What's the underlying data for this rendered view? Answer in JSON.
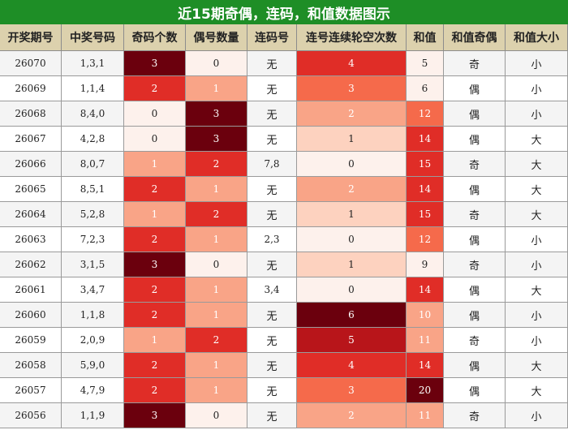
{
  "title": "近15期奇偶，连码，和值数据图示",
  "colors": {
    "title_bg": "#1e8e26",
    "header_bg": "#dcd1ad",
    "row_bg_odd": "#f4f4f4",
    "row_bg_even": "#ffffff",
    "heat_scale": [
      "#fdf1ec",
      "#fdd2bf",
      "#f9a487",
      "#f56a4b",
      "#e02d27",
      "#b8151a",
      "#6b000d"
    ]
  },
  "chart_data": {
    "type": "table",
    "columns": [
      "开奖期号",
      "中奖号码",
      "奇码个数",
      "偶号数量",
      "连码号",
      "连号连续轮空次数",
      "和值",
      "和值奇偶",
      "和值大小"
    ],
    "rows": [
      {
        "period": "26070",
        "numbers": "1,3,1",
        "odd": 3,
        "even": 0,
        "consecutive": "无",
        "gap": 4,
        "sum": 5,
        "sum_parity": "奇",
        "sum_size": "小"
      },
      {
        "period": "26069",
        "numbers": "1,1,4",
        "odd": 2,
        "even": 1,
        "consecutive": "无",
        "gap": 3,
        "sum": 6,
        "sum_parity": "偶",
        "sum_size": "小"
      },
      {
        "period": "26068",
        "numbers": "8,4,0",
        "odd": 0,
        "even": 3,
        "consecutive": "无",
        "gap": 2,
        "sum": 12,
        "sum_parity": "偶",
        "sum_size": "小"
      },
      {
        "period": "26067",
        "numbers": "4,2,8",
        "odd": 0,
        "even": 3,
        "consecutive": "无",
        "gap": 1,
        "sum": 14,
        "sum_parity": "偶",
        "sum_size": "大"
      },
      {
        "period": "26066",
        "numbers": "8,0,7",
        "odd": 1,
        "even": 2,
        "consecutive": "7,8",
        "gap": 0,
        "sum": 15,
        "sum_parity": "奇",
        "sum_size": "大"
      },
      {
        "period": "26065",
        "numbers": "8,5,1",
        "odd": 2,
        "even": 1,
        "consecutive": "无",
        "gap": 2,
        "sum": 14,
        "sum_parity": "偶",
        "sum_size": "大"
      },
      {
        "period": "26064",
        "numbers": "5,2,8",
        "odd": 1,
        "even": 2,
        "consecutive": "无",
        "gap": 1,
        "sum": 15,
        "sum_parity": "奇",
        "sum_size": "大"
      },
      {
        "period": "26063",
        "numbers": "7,2,3",
        "odd": 2,
        "even": 1,
        "consecutive": "2,3",
        "gap": 0,
        "sum": 12,
        "sum_parity": "偶",
        "sum_size": "小"
      },
      {
        "period": "26062",
        "numbers": "3,1,5",
        "odd": 3,
        "even": 0,
        "consecutive": "无",
        "gap": 1,
        "sum": 9,
        "sum_parity": "奇",
        "sum_size": "小"
      },
      {
        "period": "26061",
        "numbers": "3,4,7",
        "odd": 2,
        "even": 1,
        "consecutive": "3,4",
        "gap": 0,
        "sum": 14,
        "sum_parity": "偶",
        "sum_size": "大"
      },
      {
        "period": "26060",
        "numbers": "1,1,8",
        "odd": 2,
        "even": 1,
        "consecutive": "无",
        "gap": 6,
        "sum": 10,
        "sum_parity": "偶",
        "sum_size": "小"
      },
      {
        "period": "26059",
        "numbers": "2,0,9",
        "odd": 1,
        "even": 2,
        "consecutive": "无",
        "gap": 5,
        "sum": 11,
        "sum_parity": "奇",
        "sum_size": "小"
      },
      {
        "period": "26058",
        "numbers": "5,9,0",
        "odd": 2,
        "even": 1,
        "consecutive": "无",
        "gap": 4,
        "sum": 14,
        "sum_parity": "偶",
        "sum_size": "大"
      },
      {
        "period": "26057",
        "numbers": "4,7,9",
        "odd": 2,
        "even": 1,
        "consecutive": "无",
        "gap": 3,
        "sum": 20,
        "sum_parity": "偶",
        "sum_size": "大"
      },
      {
        "period": "26056",
        "numbers": "1,1,9",
        "odd": 3,
        "even": 0,
        "consecutive": "无",
        "gap": 2,
        "sum": 11,
        "sum_parity": "奇",
        "sum_size": "小"
      }
    ]
  }
}
